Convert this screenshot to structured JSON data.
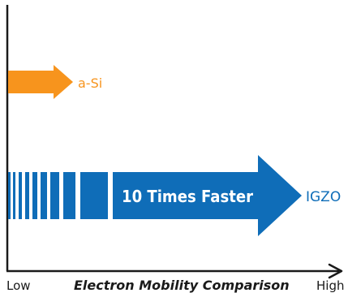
{
  "colors": {
    "asi": "#f7941d",
    "igzo": "#0f6db8",
    "axis": "#1a1a1a",
    "banner_text": "#ffffff"
  },
  "axis": {
    "low_label": "Low",
    "high_label": "High",
    "title": "Electron Mobility Comparison"
  },
  "arrows": {
    "asi": {
      "label": "a-Si"
    },
    "igzo": {
      "label": "IGZO",
      "banner_text": "10 Times Faster"
    }
  }
}
